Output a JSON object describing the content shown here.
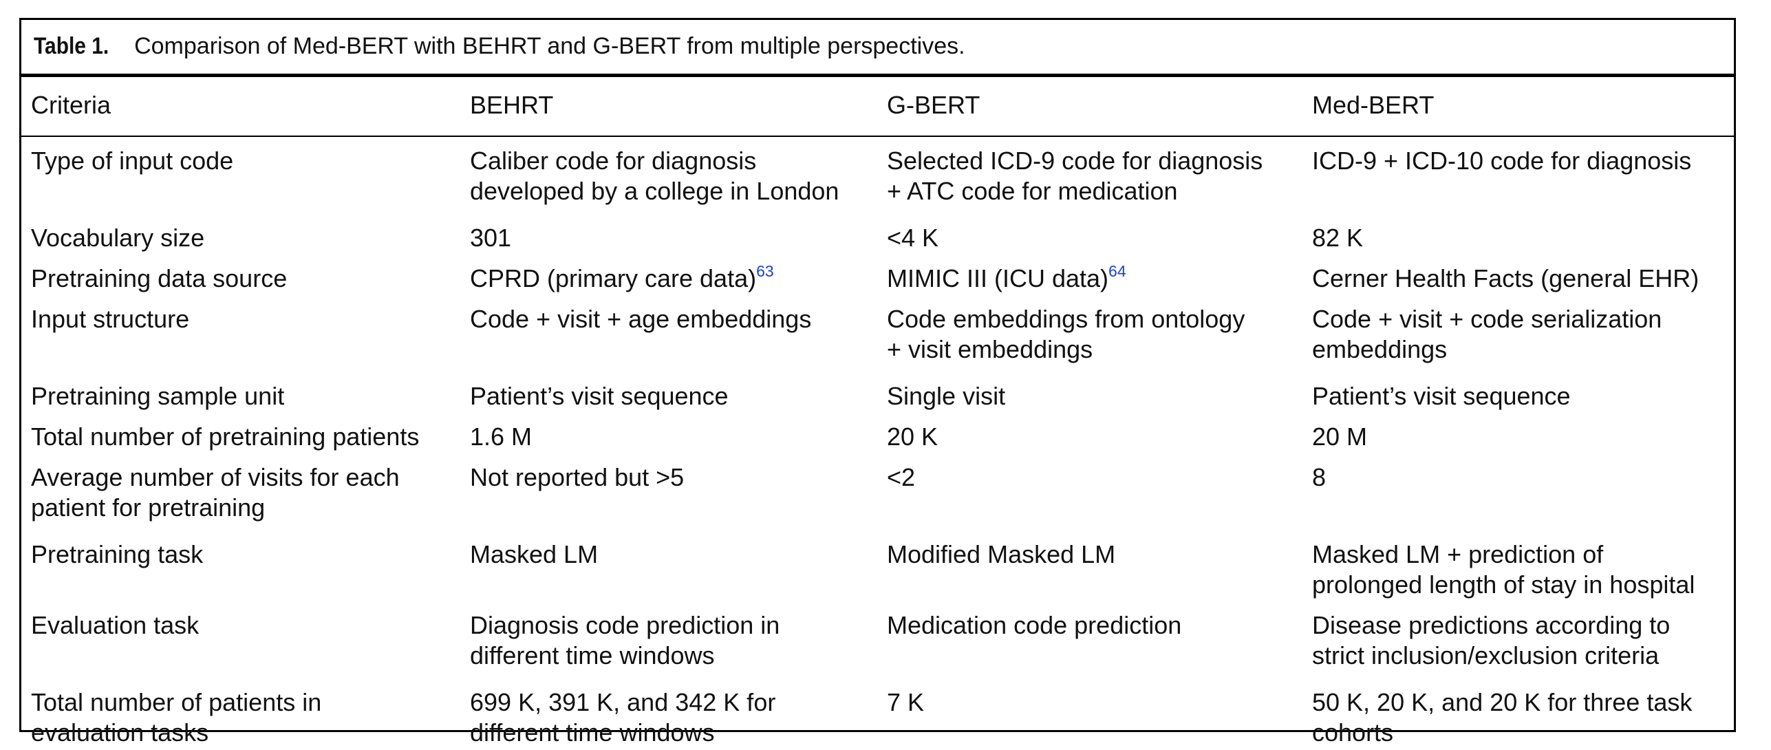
{
  "caption": {
    "label": "Table 1.",
    "text": "Comparison of Med-BERT with BEHRT and G-BERT from multiple perspectives."
  },
  "headers": [
    "Criteria",
    "BEHRT",
    "G-BERT",
    "Med-BERT"
  ],
  "rows": [
    {
      "criteria": [
        "Type of input code"
      ],
      "behrt": [
        "Caliber code for diagnosis",
        "developed by a college in London"
      ],
      "gbert": [
        "Selected ICD-9 code for diagnosis",
        "+ ATC code for medication"
      ],
      "medbert": [
        "ICD-9 + ICD-10 code for diagnosis"
      ]
    },
    {
      "criteria": [
        "Vocabulary size"
      ],
      "behrt": [
        "301"
      ],
      "gbert": [
        "<4 K"
      ],
      "medbert": [
        "82 K"
      ]
    },
    {
      "criteria": [
        "Pretraining data source"
      ],
      "behrt": [
        "CPRD (primary care data)"
      ],
      "behrt_ref": "63",
      "gbert": [
        "MIMIC III (ICU data)"
      ],
      "gbert_ref": "64",
      "medbert": [
        "Cerner Health Facts (general EHR)"
      ]
    },
    {
      "criteria": [
        "Input structure"
      ],
      "behrt": [
        "Code + visit + age embeddings"
      ],
      "gbert": [
        "Code embeddings from ontology",
        "+ visit embeddings"
      ],
      "medbert": [
        "Code + visit + code serialization",
        "embeddings"
      ]
    },
    {
      "criteria": [
        "Pretraining sample unit"
      ],
      "behrt": [
        "Patient’s visit sequence"
      ],
      "gbert": [
        "Single visit"
      ],
      "medbert": [
        "Patient’s visit sequence"
      ]
    },
    {
      "criteria": [
        "Total number of pretraining patients"
      ],
      "behrt": [
        "1.6 M"
      ],
      "gbert": [
        "20 K"
      ],
      "medbert": [
        "20 M"
      ]
    },
    {
      "criteria": [
        "Average number of visits for each",
        "patient for pretraining"
      ],
      "behrt": [
        "Not reported but >5"
      ],
      "gbert": [
        "<2"
      ],
      "medbert": [
        "8"
      ]
    },
    {
      "criteria": [
        "Pretraining task"
      ],
      "behrt": [
        "Masked LM"
      ],
      "gbert": [
        "Modified Masked LM"
      ],
      "medbert": [
        "Masked LM + prediction of",
        "prolonged length of stay in hospital"
      ]
    },
    {
      "criteria": [
        "Evaluation task"
      ],
      "behrt": [
        "Diagnosis code prediction in",
        "different time windows"
      ],
      "gbert": [
        "Medication code prediction"
      ],
      "medbert": [
        "Disease predictions according to",
        "strict inclusion/exclusion criteria"
      ]
    },
    {
      "criteria": [
        "Total number of patients in",
        "evaluation tasks"
      ],
      "behrt": [
        "699 K, 391 K, and 342 K for",
        "different time windows"
      ],
      "gbert": [
        "7 K"
      ],
      "medbert": [
        "50 K, 20 K, and 20 K for three task",
        "cohorts"
      ]
    }
  ]
}
